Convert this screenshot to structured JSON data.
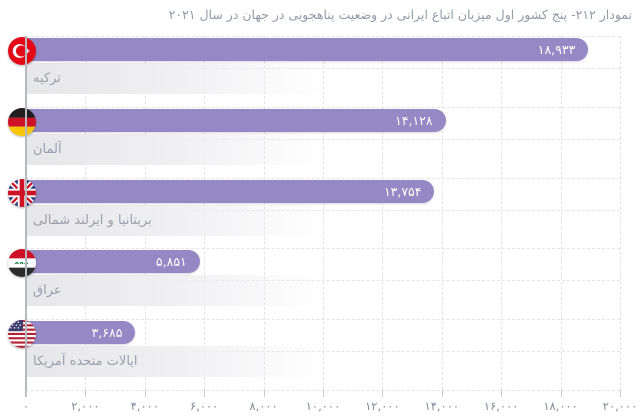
{
  "title": "نمودار ۲۱۲- پنج کشور اول میزبان اتباع ایرانی در وضعیت پناهجویی در جهان در سال ۲۰۲۱",
  "chart_data": {
    "type": "bar",
    "orientation": "horizontal",
    "title": "نمودار ۲۱۲- پنج کشور اول میزبان اتباع ایرانی در وضعیت پناهجویی در جهان در سال ۲۰۲۱",
    "categories": [
      "ترکیه",
      "آلمان",
      "بریتانیا و ایرلند شمالی",
      "عراق",
      "ایالات متحده آمریکا"
    ],
    "values": [
      18933,
      14128,
      13754,
      5851,
      3685
    ],
    "value_labels": [
      "۱۸,۹۳۳",
      "۱۴,۱۲۸",
      "۱۳,۷۵۴",
      "۵,۸۵۱",
      "۳,۶۸۵"
    ],
    "flag_icons": [
      "turkey-flag-icon",
      "germany-flag-icon",
      "uk-flag-icon",
      "iraq-flag-icon",
      "usa-flag-icon"
    ],
    "x_ticks": [
      "۰",
      "۲,۰۰۰",
      "۴,۰۰۰",
      "۶,۰۰۰",
      "۸,۰۰۰",
      "۱۰,۰۰۰",
      "۱۲,۰۰۰",
      "۱۴,۰۰۰",
      "۱۶,۰۰۰",
      "۱۸,۰۰۰",
      "۲۰,۰۰۰"
    ],
    "xlim": [
      0,
      20000
    ],
    "grid": "dashed",
    "legend": "none",
    "bar_color": "#9489C4",
    "value_text_color": "#ffffff"
  }
}
